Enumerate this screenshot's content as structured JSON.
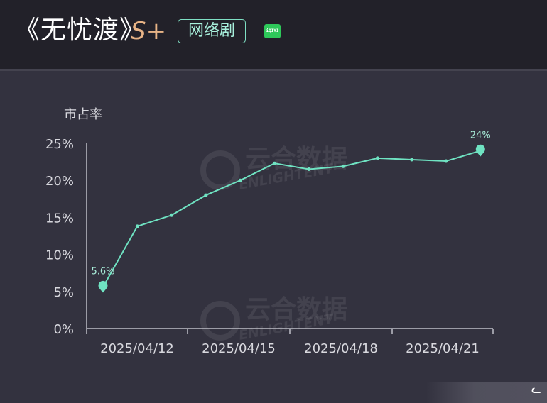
{
  "header": {
    "title": "《无忧渡》",
    "grade": "S+",
    "tag": "网络剧",
    "platform_text": "iQIYI",
    "platform_icon": "iqiyi-logo-icon"
  },
  "watermark": {
    "text_cn": "云合数据",
    "text_en": "ENLIGHTENT"
  },
  "footer": {
    "glyph": "ᓚ"
  },
  "colors": {
    "background": "#33323f",
    "header_bg": "#222129",
    "line": "#6fe3c2",
    "axis": "#bfbfc8",
    "text": "#d8d8de",
    "grade": "#e8b486"
  },
  "chart_data": {
    "type": "line",
    "ylabel": "市占率",
    "xlabel": "",
    "ylim": [
      0,
      25
    ],
    "yticks": [
      "0%",
      "5%",
      "10%",
      "15%",
      "20%",
      "25%"
    ],
    "xticks": [
      "2025/04/12",
      "2025/04/15",
      "2025/04/18",
      "2025/04/21"
    ],
    "x": [
      "2025/04/12",
      "2025/04/13",
      "2025/04/14",
      "2025/04/15",
      "2025/04/16",
      "2025/04/17",
      "2025/04/18",
      "2025/04/19",
      "2025/04/20",
      "2025/04/21",
      "2025/04/22",
      "2025/04/23"
    ],
    "series": [
      {
        "values": [
          5.6,
          13.8,
          15.3,
          18.0,
          20.0,
          22.3,
          21.5,
          21.9,
          23.0,
          22.8,
          22.6,
          24.0
        ]
      }
    ],
    "annotations": [
      {
        "index": 0,
        "text": "5.6%"
      },
      {
        "index": 11,
        "text": "24%"
      }
    ],
    "grid": false,
    "legend": "none"
  }
}
